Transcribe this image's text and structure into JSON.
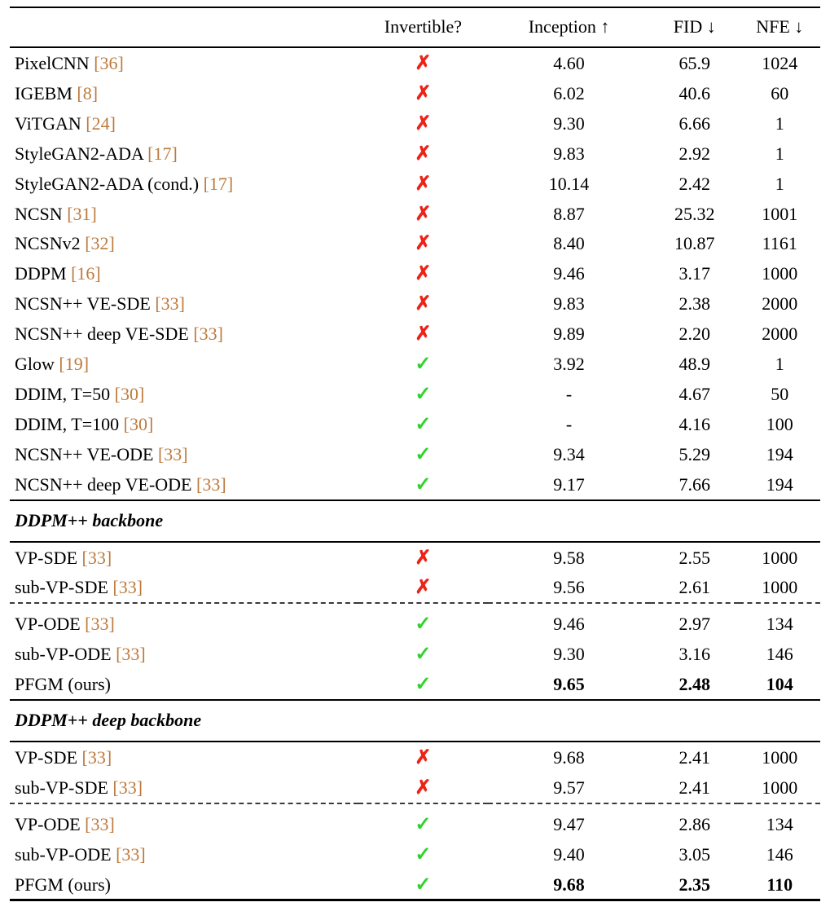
{
  "table": {
    "columns": [
      "",
      "Invertible?",
      "Inception ↑",
      "FID ↓",
      "NFE ↓"
    ],
    "glyphs": {
      "check": "✓",
      "cross": "✗"
    },
    "colors": {
      "check": "#2fd32b",
      "cross": "#ec2418",
      "citation": "#bd7a3d"
    },
    "sections": [
      {
        "rows": [
          {
            "name": "PixelCNN",
            "cite": "[36]",
            "invertible": false,
            "inception": "4.60",
            "fid": "65.9",
            "nfe": "1024"
          },
          {
            "name": "IGEBM",
            "cite": "[8]",
            "invertible": false,
            "inception": "6.02",
            "fid": "40.6",
            "nfe": "60"
          },
          {
            "name": "ViTGAN",
            "cite": "[24]",
            "invertible": false,
            "inception": "9.30",
            "fid": "6.66",
            "nfe": "1"
          },
          {
            "name": "StyleGAN2-ADA",
            "cite": "[17]",
            "invertible": false,
            "inception": "9.83",
            "fid": "2.92",
            "nfe": "1"
          },
          {
            "name": "StyleGAN2-ADA (cond.)",
            "cite": "[17]",
            "invertible": false,
            "inception": "10.14",
            "fid": "2.42",
            "nfe": "1"
          },
          {
            "name": "NCSN",
            "cite": "[31]",
            "invertible": false,
            "inception": "8.87",
            "fid": "25.32",
            "nfe": "1001"
          },
          {
            "name": "NCSNv2",
            "cite": "[32]",
            "invertible": false,
            "inception": "8.40",
            "fid": "10.87",
            "nfe": "1161"
          },
          {
            "name": "DDPM",
            "cite": "[16]",
            "invertible": false,
            "inception": "9.46",
            "fid": "3.17",
            "nfe": "1000"
          },
          {
            "name": "NCSN++ VE-SDE",
            "cite": "[33]",
            "invertible": false,
            "inception": "9.83",
            "fid": "2.38",
            "nfe": "2000"
          },
          {
            "name": "NCSN++ deep VE-SDE",
            "cite": "[33]",
            "invertible": false,
            "inception": "9.89",
            "fid": "2.20",
            "nfe": "2000"
          },
          {
            "name": "Glow",
            "cite": "[19]",
            "invertible": true,
            "inception": "3.92",
            "fid": "48.9",
            "nfe": "1"
          },
          {
            "name": "DDIM, T=50",
            "cite": "[30]",
            "invertible": true,
            "inception": "-",
            "fid": "4.67",
            "nfe": "50"
          },
          {
            "name": "DDIM, T=100",
            "cite": "[30]",
            "invertible": true,
            "inception": "-",
            "fid": "4.16",
            "nfe": "100"
          },
          {
            "name": "NCSN++ VE-ODE",
            "cite": "[33]",
            "invertible": true,
            "inception": "9.34",
            "fid": "5.29",
            "nfe": "194"
          },
          {
            "name": "NCSN++ deep VE-ODE",
            "cite": "[33]",
            "invertible": true,
            "inception": "9.17",
            "fid": "7.66",
            "nfe": "194"
          }
        ]
      },
      {
        "heading": "DDPM++ backbone",
        "rows": [
          {
            "name": "VP-SDE",
            "cite": "[33]",
            "invertible": false,
            "inception": "9.58",
            "fid": "2.55",
            "nfe": "1000"
          },
          {
            "name": "sub-VP-SDE",
            "cite": "[33]",
            "invertible": false,
            "inception": "9.56",
            "fid": "2.61",
            "nfe": "1000"
          }
        ],
        "rows2": [
          {
            "name": "VP-ODE",
            "cite": "[33]",
            "invertible": true,
            "inception": "9.46",
            "fid": "2.97",
            "nfe": "134"
          },
          {
            "name": "sub-VP-ODE",
            "cite": "[33]",
            "invertible": true,
            "inception": "9.30",
            "fid": "3.16",
            "nfe": "146"
          },
          {
            "name": "PFGM (ours)",
            "invertible": true,
            "inception": "9.65",
            "fid": "2.48",
            "nfe": "104",
            "bold": true
          }
        ]
      },
      {
        "heading": "DDPM++ deep backbone",
        "rows": [
          {
            "name": "VP-SDE",
            "cite": "[33]",
            "invertible": false,
            "inception": "9.68",
            "fid": "2.41",
            "nfe": "1000"
          },
          {
            "name": "sub-VP-SDE",
            "cite": "[33]",
            "invertible": false,
            "inception": "9.57",
            "fid": "2.41",
            "nfe": "1000"
          }
        ],
        "rows2": [
          {
            "name": "VP-ODE",
            "cite": "[33]",
            "invertible": true,
            "inception": "9.47",
            "fid": "2.86",
            "nfe": "134"
          },
          {
            "name": "sub-VP-ODE",
            "cite": "[33]",
            "invertible": true,
            "inception": "9.40",
            "fid": "3.05",
            "nfe": "146"
          },
          {
            "name": "PFGM (ours)",
            "invertible": true,
            "inception": "9.68",
            "fid": "2.35",
            "nfe": "110",
            "bold": true
          }
        ]
      }
    ]
  }
}
